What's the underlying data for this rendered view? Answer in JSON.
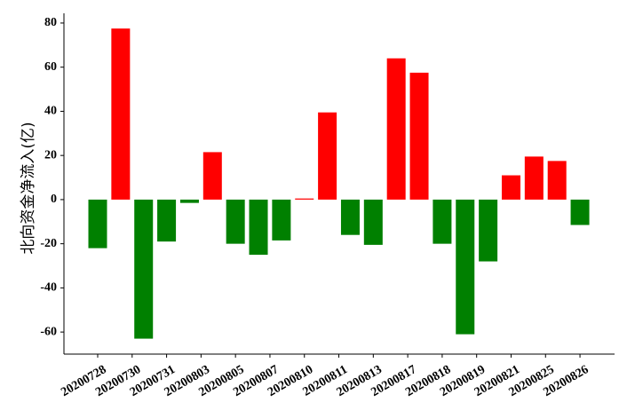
{
  "chart_data": {
    "type": "bar",
    "y_label": "北向资金净流入(亿)",
    "values": [
      -22,
      77.5,
      -63,
      -19,
      -1.5,
      21.5,
      -20,
      -25,
      -18.5,
      0.5,
      39.5,
      -16,
      -20.5,
      64,
      57.5,
      -20,
      -61,
      -28,
      11,
      19.5,
      17.5,
      -11.5
    ],
    "positive_color": "#ff0000",
    "negative_color": "#008000",
    "xticks": [
      {
        "value": 0,
        "label": "20200728"
      },
      {
        "value": 1.5,
        "label": "20200730"
      },
      {
        "value": 3,
        "label": "20200731"
      },
      {
        "value": 4.5,
        "label": "20200803"
      },
      {
        "value": 6,
        "label": "20200805"
      },
      {
        "value": 7.5,
        "label": "20200807"
      },
      {
        "value": 9,
        "label": "20200810"
      },
      {
        "value": 10.5,
        "label": "20200811"
      },
      {
        "value": 12,
        "label": "20200813"
      },
      {
        "value": 13.5,
        "label": "20200817"
      },
      {
        "value": 15,
        "label": "20200818"
      },
      {
        "value": 16.5,
        "label": "20200819"
      },
      {
        "value": 18,
        "label": "20200821"
      },
      {
        "value": 19.5,
        "label": "20200825"
      },
      {
        "value": 21,
        "label": "20200826"
      }
    ],
    "ylim": [
      -70,
      84.4
    ],
    "yticks": [
      -60,
      -40,
      -20,
      0,
      20,
      40,
      60,
      80
    ]
  }
}
